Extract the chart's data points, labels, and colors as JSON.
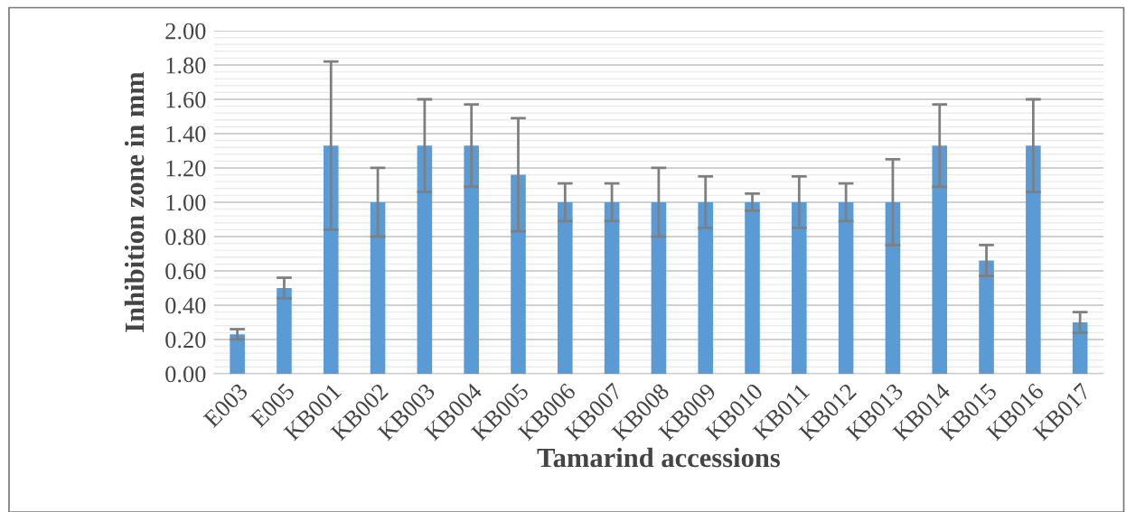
{
  "chart_data": {
    "type": "bar",
    "xlabel": "Tamarind accessions",
    "ylabel": "Inhibition zone in mm",
    "categories": [
      "E003",
      "E005",
      "KB001",
      "KB002",
      "KB003",
      "KB004",
      "KB005",
      "KB006",
      "KB007",
      "KB008",
      "KB009",
      "KB010",
      "KB011",
      "KB012",
      "KB013",
      "KB014",
      "KB015",
      "KB016",
      "KB017"
    ],
    "values": [
      0.23,
      0.5,
      1.33,
      1.0,
      1.33,
      1.33,
      1.16,
      1.0,
      1.0,
      1.0,
      1.0,
      1.0,
      1.0,
      1.0,
      1.0,
      1.33,
      0.66,
      1.33,
      0.3
    ],
    "errors": [
      0.03,
      0.06,
      0.49,
      0.2,
      0.27,
      0.24,
      0.33,
      0.11,
      0.11,
      0.2,
      0.15,
      0.05,
      0.15,
      0.11,
      0.25,
      0.24,
      0.09,
      0.27,
      0.06
    ],
    "color": "#5b9bd5",
    "ylim": [
      0,
      2
    ],
    "yticks": [
      {
        "value": 0,
        "label": "0.00"
      },
      {
        "value": 0.2,
        "label": "0.20"
      },
      {
        "value": 0.4,
        "label": "0.40"
      },
      {
        "value": 0.6,
        "label": "0.60"
      },
      {
        "value": 0.8,
        "label": "0.80"
      },
      {
        "value": 1.0,
        "label": "1.00"
      },
      {
        "value": 1.2,
        "label": "1.20"
      },
      {
        "value": 1.4,
        "label": "1.40"
      },
      {
        "value": 1.6,
        "label": "1.60"
      },
      {
        "value": 1.8,
        "label": "1.80"
      },
      {
        "value": 2.0,
        "label": "2.00"
      }
    ],
    "grid": "y"
  }
}
